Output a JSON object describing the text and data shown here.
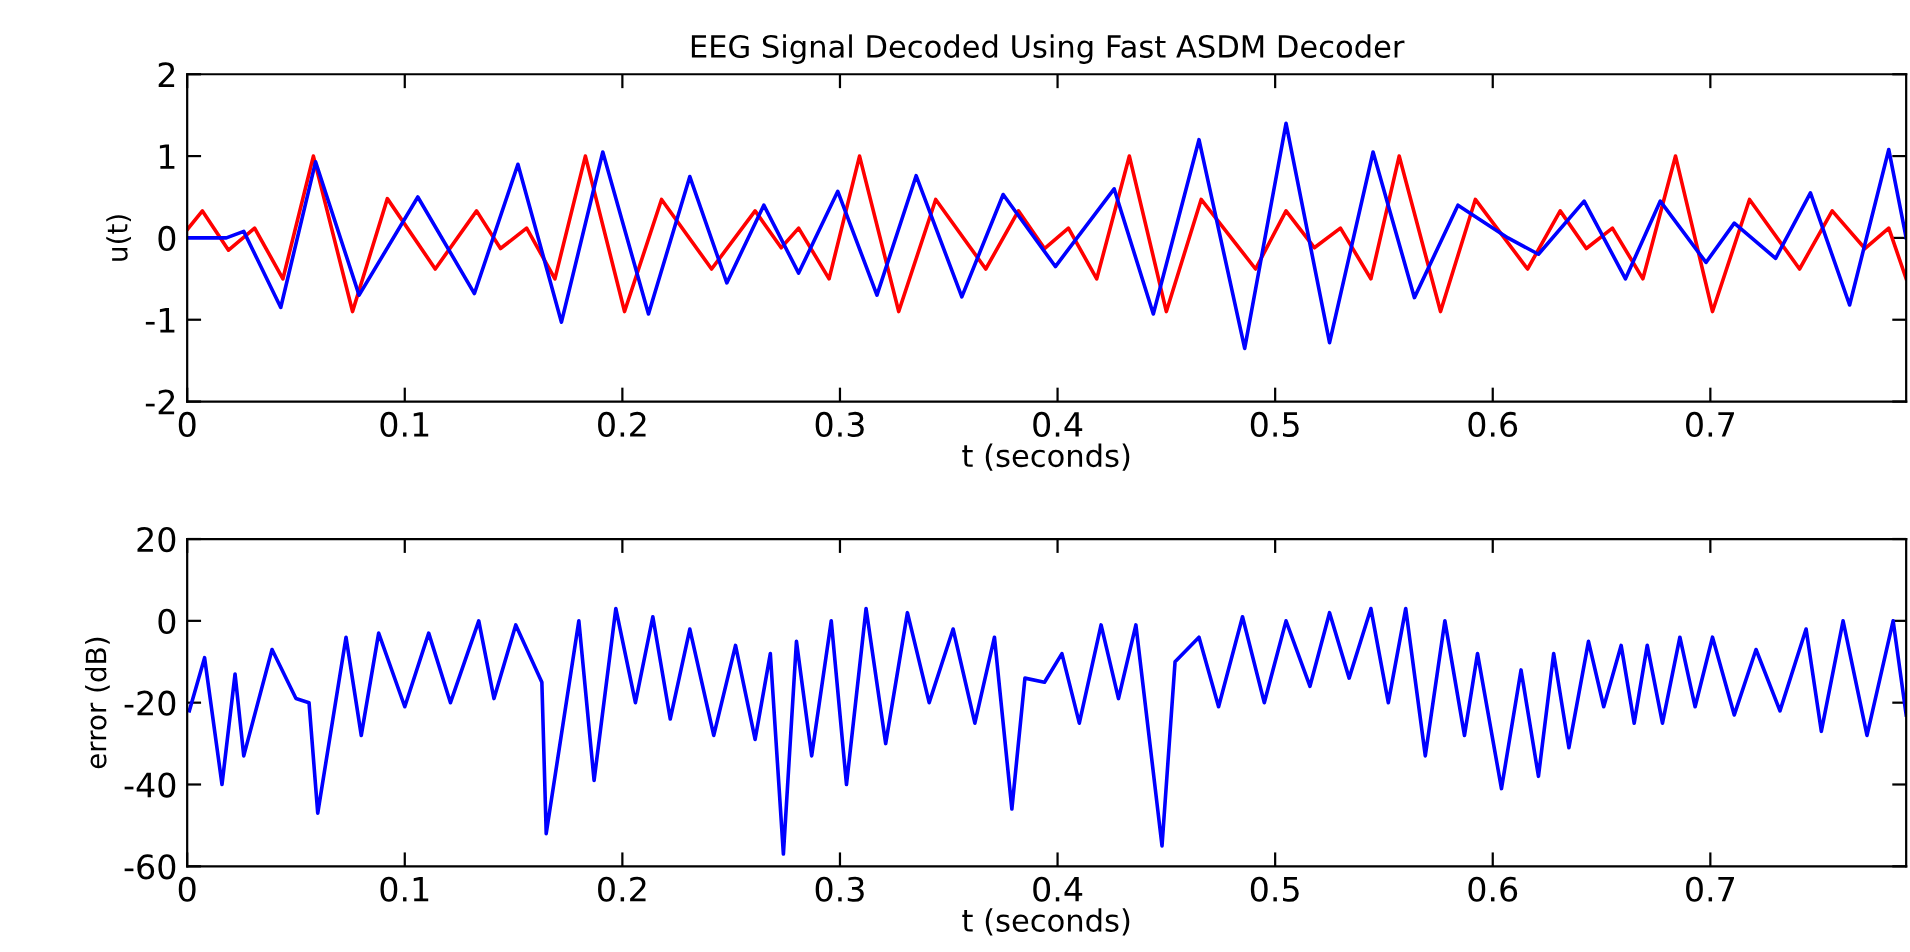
{
  "chart_data": [
    {
      "type": "line",
      "title": "EEG Signal Decoded Using Fast ASDM Decoder",
      "xlabel": "t (seconds)",
      "ylabel": "u(t)",
      "xlim": [
        0,
        0.79
      ],
      "xticks": [
        0,
        0.1,
        0.2,
        0.3,
        0.4,
        0.5,
        0.6,
        0.7
      ],
      "ylim": [
        -2,
        2
      ],
      "yticks": [
        -2,
        -1,
        0,
        1,
        2
      ],
      "grid": false,
      "legend": false,
      "series": [
        {
          "color": "#ff0000",
          "x": [
            0,
            0.007,
            0.019,
            0.031,
            0.044,
            0.058,
            0.076,
            0.092,
            0.114,
            0.133,
            0.144,
            0.156,
            0.169,
            0.183,
            0.201,
            0.218,
            0.241,
            0.261,
            0.273,
            0.281,
            0.295,
            0.309,
            0.327,
            0.344,
            0.367,
            0.382,
            0.394,
            0.405,
            0.418,
            0.433,
            0.45,
            0.466,
            0.491,
            0.505,
            0.518,
            0.53,
            0.544,
            0.557,
            0.576,
            0.592,
            0.616,
            0.631,
            0.643,
            0.655,
            0.669,
            0.684,
            0.701,
            0.718,
            0.741,
            0.756,
            0.771,
            0.782,
            0.79
          ],
          "values": [
            0.1,
            0.33,
            -0.15,
            0.12,
            -0.5,
            1.0,
            -0.9,
            0.48,
            -0.38,
            0.33,
            -0.13,
            0.12,
            -0.5,
            1.0,
            -0.9,
            0.47,
            -0.38,
            0.33,
            -0.12,
            0.12,
            -0.5,
            1.0,
            -0.9,
            0.47,
            -0.38,
            0.33,
            -0.13,
            0.12,
            -0.5,
            1.0,
            -0.9,
            0.47,
            -0.38,
            0.33,
            -0.12,
            0.12,
            -0.5,
            1.0,
            -0.9,
            0.47,
            -0.38,
            0.33,
            -0.13,
            0.12,
            -0.5,
            1.0,
            -0.9,
            0.47,
            -0.38,
            0.33,
            -0.13,
            0.12,
            -0.5
          ]
        },
        {
          "color": "#0000ff",
          "x": [
            0,
            0.018,
            0.026,
            0.043,
            0.059,
            0.079,
            0.106,
            0.132,
            0.152,
            0.172,
            0.191,
            0.212,
            0.231,
            0.248,
            0.265,
            0.281,
            0.299,
            0.317,
            0.335,
            0.356,
            0.375,
            0.399,
            0.426,
            0.444,
            0.465,
            0.486,
            0.505,
            0.525,
            0.545,
            0.564,
            0.584,
            0.607,
            0.621,
            0.642,
            0.661,
            0.677,
            0.698,
            0.711,
            0.73,
            0.746,
            0.764,
            0.782,
            0.79
          ],
          "values": [
            0,
            0,
            0.08,
            -0.85,
            0.93,
            -0.7,
            0.5,
            -0.68,
            0.9,
            -1.03,
            1.05,
            -0.93,
            0.75,
            -0.55,
            0.4,
            -0.43,
            0.57,
            -0.7,
            0.76,
            -0.72,
            0.53,
            -0.35,
            0.6,
            -0.93,
            1.2,
            -1.35,
            1.4,
            -1.28,
            1.05,
            -0.73,
            0.4,
            0,
            -0.2,
            0.45,
            -0.5,
            0.45,
            -0.3,
            0.18,
            -0.25,
            0.55,
            -0.82,
            1.08,
            0
          ]
        }
      ]
    },
    {
      "type": "line",
      "xlabel": "t (seconds)",
      "ylabel": "error (dB)",
      "xlim": [
        0,
        0.79
      ],
      "xticks": [
        0,
        0.1,
        0.2,
        0.3,
        0.4,
        0.5,
        0.6,
        0.7
      ],
      "ylim": [
        -60,
        20
      ],
      "yticks": [
        -60,
        -40,
        -20,
        0,
        20
      ],
      "grid": false,
      "legend": false,
      "series": [
        {
          "color": "#0000ff",
          "x": [
            0.001,
            0.008,
            0.016,
            0.022,
            0.026,
            0.039,
            0.05,
            0.056,
            0.06,
            0.073,
            0.08,
            0.088,
            0.1,
            0.111,
            0.121,
            0.134,
            0.141,
            0.151,
            0.163,
            0.165,
            0.18,
            0.187,
            0.197,
            0.206,
            0.214,
            0.222,
            0.231,
            0.242,
            0.252,
            0.261,
            0.268,
            0.274,
            0.28,
            0.287,
            0.296,
            0.303,
            0.312,
            0.321,
            0.331,
            0.341,
            0.352,
            0.362,
            0.371,
            0.379,
            0.385,
            0.394,
            0.402,
            0.41,
            0.42,
            0.428,
            0.436,
            0.448,
            0.454,
            0.465,
            0.474,
            0.485,
            0.495,
            0.505,
            0.516,
            0.525,
            0.534,
            0.544,
            0.552,
            0.56,
            0.569,
            0.578,
            0.587,
            0.593,
            0.604,
            0.613,
            0.621,
            0.628,
            0.635,
            0.644,
            0.651,
            0.659,
            0.665,
            0.671,
            0.678,
            0.686,
            0.693,
            0.701,
            0.711,
            0.721,
            0.732,
            0.744,
            0.751,
            0.761,
            0.772,
            0.784,
            0.79
          ],
          "values": [
            -22,
            -9,
            -40,
            -13,
            -33,
            -7,
            -19,
            -20,
            -47,
            -4,
            -28,
            -3,
            -21,
            -3,
            -20,
            0,
            -19,
            -1,
            -15,
            -52,
            0,
            -39,
            3,
            -20,
            1,
            -24,
            -2,
            -28,
            -6,
            -29,
            -8,
            -57,
            -5,
            -33,
            0,
            -40,
            3,
            -30,
            2,
            -20,
            -2,
            -25,
            -4,
            -46,
            -14,
            -15,
            -8,
            -25,
            -1,
            -19,
            -1,
            -55,
            -10,
            -4,
            -21,
            1,
            -20,
            0,
            -16,
            2,
            -14,
            3,
            -20,
            3,
            -33,
            0,
            -28,
            -8,
            -41,
            -12,
            -38,
            -8,
            -31,
            -5,
            -21,
            -6,
            -25,
            -6,
            -25,
            -4,
            -21,
            -4,
            -23,
            -7,
            -22,
            -2,
            -27,
            0,
            -28,
            0,
            -23
          ]
        }
      ]
    }
  ]
}
